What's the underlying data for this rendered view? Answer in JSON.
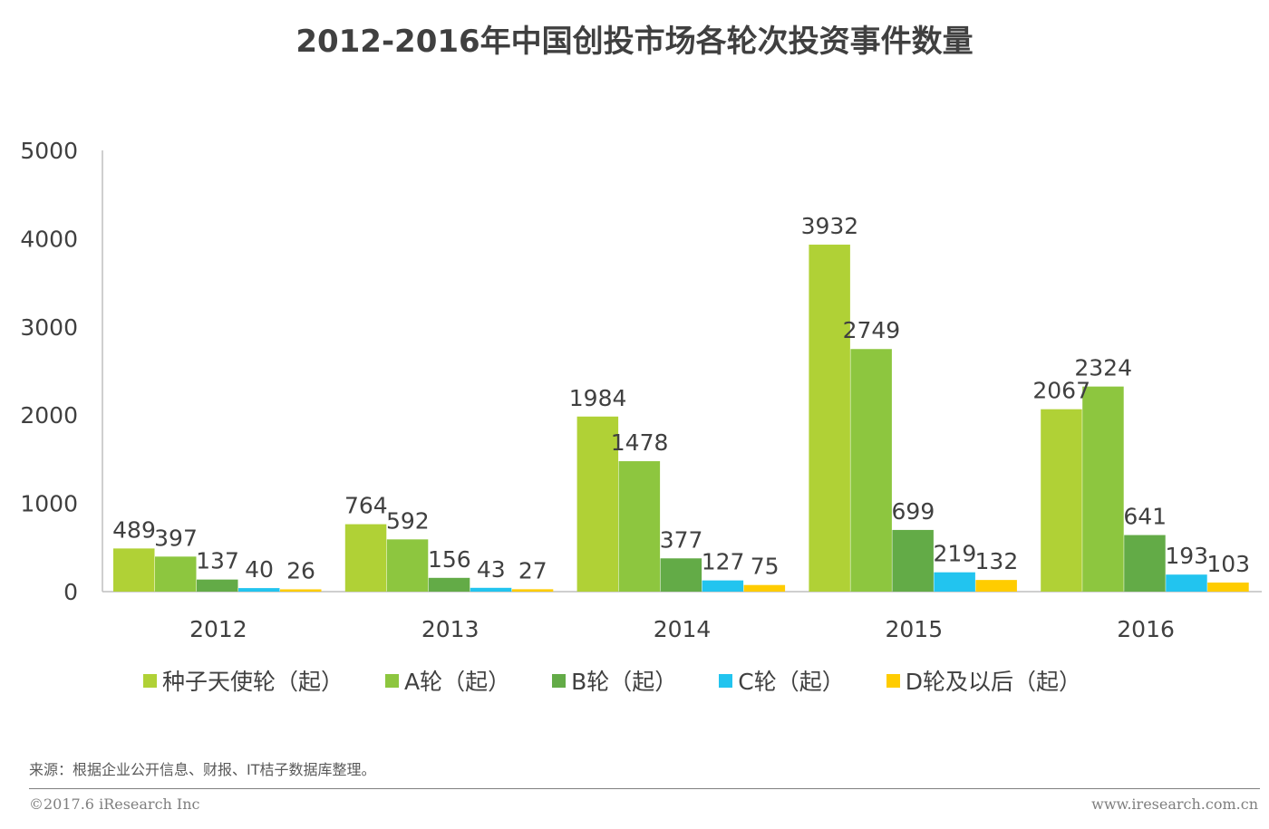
{
  "header": {
    "title": "2012-2016年中国创投市场各轮次投资事件数量"
  },
  "chart_data": {
    "type": "bar",
    "title": "2012-2016年中国创投市场各轮次投资事件数量",
    "xlabel": "",
    "ylabel": "",
    "ylim": [
      0,
      5000
    ],
    "yticks": [
      "0",
      "1000",
      "2000",
      "3000",
      "4000",
      "5000"
    ],
    "grid": false,
    "legend_position": "bottom",
    "categories": [
      "2012",
      "2013",
      "2014",
      "2015",
      "2016"
    ],
    "series": [
      {
        "name": "种子天使轮（起）",
        "color": "#b0d136",
        "values": [
          489,
          764,
          1984,
          3932,
          2067
        ]
      },
      {
        "name": "A轮（起）",
        "color": "#8dc63f",
        "values": [
          397,
          592,
          1478,
          2749,
          2324
        ]
      },
      {
        "name": "B轮（起）",
        "color": "#63ab47",
        "values": [
          137,
          156,
          377,
          699,
          641
        ]
      },
      {
        "name": "C轮（起）",
        "color": "#22c4ef",
        "values": [
          40,
          43,
          127,
          219,
          193
        ]
      },
      {
        "name": "D轮及以后（起）",
        "color": "#ffcc00",
        "values": [
          26,
          27,
          75,
          132,
          103
        ]
      }
    ]
  },
  "footer": {
    "source": "来源：根据企业公开信息、财报、IT桔子数据库整理。",
    "copyright": "©2017.6 iResearch Inc",
    "website": "www.iresearch.com.cn"
  }
}
